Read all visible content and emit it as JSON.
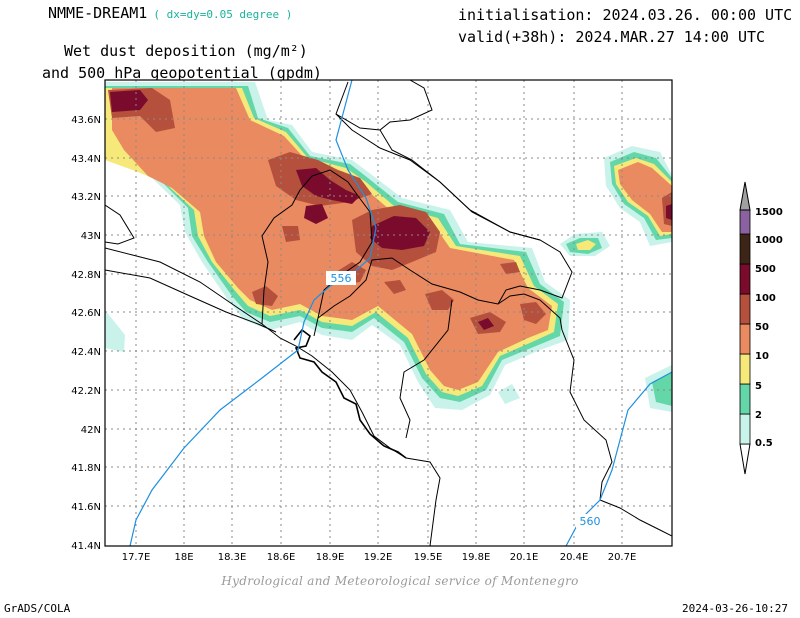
{
  "header": {
    "model": "NMME-DREAM1",
    "resolution": "( dx=dy=0.05 degree )",
    "field_line1": "Wet dust deposition (mg/m²)",
    "field_line2": "and 500 hPa geopotential (gpdm)",
    "init": "initialisation: 2024.03.26. 00:00 UTC",
    "valid": "valid(+38h): 2024.MAR.27 14:00 UTC"
  },
  "map": {
    "lat_labels": [
      "43.6N",
      "43.4N",
      "43.2N",
      "43N",
      "42.8N",
      "42.6N",
      "42.4N",
      "42.2N",
      "42N",
      "41.8N",
      "41.6N",
      "41.4N"
    ],
    "lon_labels": [
      "17.7E",
      "18E",
      "18.3E",
      "18.6E",
      "18.9E",
      "19.2E",
      "19.5E",
      "19.8E",
      "20.1E",
      "20.4E",
      "20.7E"
    ],
    "contour_labels": [
      "556",
      "560"
    ],
    "contour_color": "#1e90e0"
  },
  "legend": {
    "levels": [
      "0.5",
      "2",
      "5",
      "10",
      "50",
      "100",
      "500",
      "1000",
      "1500"
    ],
    "colors": [
      "#c8f2ea",
      "#64d7a8",
      "#f7e87a",
      "#e98a60",
      "#b4503c",
      "#7a0b2c",
      "#3c2416",
      "#8a62a0",
      "#a0a0a0"
    ]
  },
  "credit": "Hydrological and Meteorological service of Montenegro",
  "footer": {
    "left": "GrADS/COLA",
    "right": "2024-03-26-10:27"
  }
}
